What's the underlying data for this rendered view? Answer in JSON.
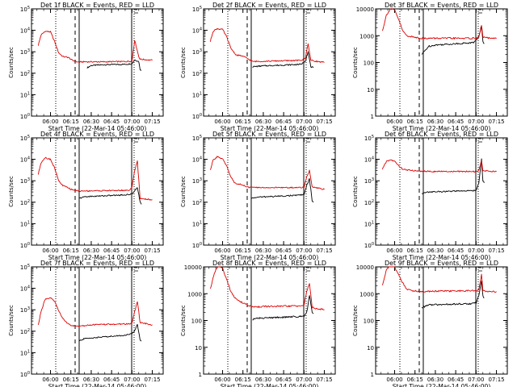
{
  "xlabel": "Start Time (22-Mar-14 05:46:00)",
  "ylabel": "Counts/sec",
  "colors": {
    "events": "#000000",
    "lld": "#dd0000",
    "axes": "#000000"
  },
  "chart_data": [
    {
      "type": "line",
      "title": "Det 1f BLACK = Events, RED = LLD",
      "yscale": "log",
      "ylim": [
        1,
        100000
      ],
      "ytick_labels": [
        "10^0",
        "10^1",
        "10^2",
        "10^3",
        "10^4",
        "10^5"
      ],
      "ytick_values": [
        1,
        10,
        100,
        1000,
        10000,
        100000
      ],
      "xtick_labels": [
        "06:00",
        "06:15",
        "06:30",
        "06:45",
        "07:00",
        "07:15"
      ],
      "series": [
        {
          "role": "events",
          "x": [
            "06:27",
            "06:30",
            "06:40",
            "06:55",
            "07:00",
            "07:02",
            "07:05",
            "07:06",
            "07:07"
          ],
          "y": [
            180,
            230,
            250,
            260,
            280,
            420,
            350,
            150,
            140
          ]
        },
        {
          "role": "lld",
          "x": [
            "05:51",
            "05:53",
            "05:56",
            "06:00",
            "06:03",
            "06:06",
            "06:09",
            "06:13",
            "06:16",
            "06:20",
            "06:25",
            "06:40",
            "06:55",
            "07:00",
            "07:02",
            "07:05",
            "07:06",
            "07:15"
          ],
          "y": [
            2000,
            6000,
            9000,
            8500,
            3000,
            900,
            600,
            550,
            400,
            330,
            340,
            340,
            350,
            370,
            3500,
            600,
            450,
            400
          ]
        }
      ]
    },
    {
      "type": "line",
      "title": "Det 2f BLACK = Events, RED = LLD",
      "yscale": "log",
      "ylim": [
        1,
        100000
      ],
      "ytick_labels": [
        "10^0",
        "10^1",
        "10^2",
        "10^3",
        "10^4",
        "10^5"
      ],
      "ytick_values": [
        1,
        10,
        100,
        1000,
        10000,
        100000
      ],
      "xtick_labels": [
        "06:00",
        "06:15",
        "06:30",
        "06:45",
        "07:00",
        "07:15"
      ],
      "series": [
        {
          "role": "events",
          "x": [
            "06:22",
            "06:30",
            "06:45",
            "06:58",
            "07:01",
            "07:03",
            "07:05",
            "07:07"
          ],
          "y": [
            200,
            220,
            240,
            260,
            380,
            1000,
            200,
            180
          ]
        },
        {
          "role": "lld",
          "x": [
            "05:51",
            "05:53",
            "05:56",
            "06:00",
            "06:03",
            "06:06",
            "06:10",
            "06:14",
            "06:18",
            "06:22",
            "06:30",
            "06:45",
            "06:58",
            "07:01",
            "07:03",
            "07:05",
            "07:10",
            "07:15"
          ],
          "y": [
            3000,
            9000,
            12000,
            11000,
            5000,
            1500,
            700,
            650,
            500,
            350,
            360,
            380,
            400,
            500,
            2500,
            400,
            350,
            320
          ]
        }
      ]
    },
    {
      "type": "line",
      "title": "Det 3f BLACK = Events, RED = LLD",
      "yscale": "log",
      "ylim": [
        1,
        10000
      ],
      "ytick_labels": [
        "1",
        "10",
        "100",
        "1000",
        "10000"
      ],
      "ytick_values": [
        1,
        10,
        100,
        1000,
        10000
      ],
      "xtick_labels": [
        "06:00",
        "06:15",
        "06:30",
        "06:45",
        "07:00",
        "07:15"
      ],
      "series": [
        {
          "role": "events",
          "x": [
            "06:20",
            "06:25",
            "06:30",
            "06:45",
            "06:58",
            "07:02",
            "07:04",
            "07:05",
            "07:06"
          ],
          "y": [
            200,
            400,
            450,
            500,
            550,
            900,
            2200,
            600,
            500
          ]
        },
        {
          "role": "lld",
          "x": [
            "05:51",
            "05:54",
            "05:57",
            "06:00",
            "06:03",
            "06:06",
            "06:09",
            "06:13",
            "06:17",
            "06:20",
            "06:30",
            "06:45",
            "07:00",
            "07:02",
            "07:04",
            "07:05",
            "07:10",
            "07:15"
          ],
          "y": [
            1500,
            6000,
            10000,
            9000,
            4000,
            1500,
            1000,
            900,
            850,
            800,
            800,
            800,
            800,
            900,
            2500,
            900,
            800,
            780
          ]
        }
      ]
    },
    {
      "type": "line",
      "title": "Det 4f BLACK = Events, RED = LLD",
      "yscale": "log",
      "ylim": [
        1,
        100000
      ],
      "ytick_labels": [
        "10^0",
        "10^1",
        "10^2",
        "10^3",
        "10^4",
        "10^5"
      ],
      "ytick_values": [
        1,
        10,
        100,
        1000,
        10000,
        100000
      ],
      "xtick_labels": [
        "06:00",
        "06:15",
        "06:30",
        "06:45",
        "07:00",
        "07:15"
      ],
      "series": [
        {
          "role": "events",
          "x": [
            "06:21",
            "06:25",
            "06:40",
            "06:55",
            "07:00",
            "07:02",
            "07:04",
            "07:06",
            "07:07"
          ],
          "y": [
            150,
            180,
            200,
            220,
            240,
            350,
            500,
            100,
            80
          ]
        },
        {
          "role": "lld",
          "x": [
            "05:51",
            "05:53",
            "05:56",
            "06:00",
            "06:03",
            "06:06",
            "06:09",
            "06:12",
            "06:15",
            "06:21",
            "06:30",
            "06:45",
            "06:58",
            "07:00",
            "07:02",
            "07:04",
            "07:06",
            "07:15"
          ],
          "y": [
            2000,
            7000,
            12000,
            10000,
            4000,
            1000,
            600,
            500,
            400,
            330,
            340,
            350,
            360,
            500,
            3000,
            8000,
            150,
            130
          ]
        }
      ]
    },
    {
      "type": "line",
      "title": "Det 5f BLACK = Events, RED = LLD",
      "yscale": "log",
      "ylim": [
        1,
        100000
      ],
      "ytick_labels": [
        "10^0",
        "10^1",
        "10^2",
        "10^3",
        "10^4",
        "10^5"
      ],
      "ytick_values": [
        1,
        10,
        100,
        1000,
        10000,
        100000
      ],
      "xtick_labels": [
        "06:00",
        "06:15",
        "06:30",
        "06:45",
        "07:00",
        "07:15"
      ],
      "series": [
        {
          "role": "events",
          "x": [
            "06:21",
            "06:25",
            "06:40",
            "06:55",
            "07:00",
            "07:02",
            "07:04",
            "07:06",
            "07:07"
          ],
          "y": [
            150,
            170,
            190,
            210,
            230,
            600,
            1200,
            120,
            100
          ]
        },
        {
          "role": "lld",
          "x": [
            "05:51",
            "05:53",
            "05:56",
            "06:00",
            "06:03",
            "06:06",
            "06:09",
            "06:12",
            "06:15",
            "06:18",
            "06:25",
            "06:40",
            "06:55",
            "07:00",
            "07:02",
            "07:04",
            "07:06",
            "07:15"
          ],
          "y": [
            3000,
            9000,
            13000,
            11000,
            5000,
            1500,
            800,
            700,
            650,
            500,
            480,
            480,
            480,
            500,
            1500,
            3000,
            500,
            400
          ]
        }
      ]
    },
    {
      "type": "line",
      "title": "Det 6f BLACK = Events, RED = LLD",
      "yscale": "log",
      "ylim": [
        1,
        100000
      ],
      "ytick_labels": [
        "10^0",
        "10^1",
        "10^2",
        "10^3",
        "10^4",
        "10^5"
      ],
      "ytick_values": [
        1,
        10,
        100,
        1000,
        10000,
        100000
      ],
      "xtick_labels": [
        "06:00",
        "06:15",
        "06:30",
        "06:45",
        "07:00",
        "07:15"
      ],
      "series": [
        {
          "role": "events",
          "x": [
            "06:20",
            "06:25",
            "06:40",
            "06:55",
            "07:00",
            "07:02",
            "07:04",
            "07:05",
            "07:06"
          ],
          "y": [
            250,
            300,
            320,
            340,
            360,
            800,
            10000,
            1000,
            800
          ]
        },
        {
          "role": "lld",
          "x": [
            "05:51",
            "05:54",
            "05:57",
            "06:00",
            "06:03",
            "06:06",
            "06:09",
            "06:13",
            "06:17",
            "06:20",
            "06:30",
            "06:45",
            "07:00",
            "07:02",
            "07:04",
            "07:05",
            "07:10",
            "07:15"
          ],
          "y": [
            3500,
            8000,
            9500,
            8000,
            5000,
            3500,
            3200,
            3000,
            2900,
            2800,
            2700,
            2700,
            2700,
            2900,
            9000,
            3000,
            2800,
            2700
          ]
        }
      ]
    },
    {
      "type": "line",
      "title": "Det 7f BLACK = Events, RED = LLD",
      "yscale": "log",
      "ylim": [
        1,
        100000
      ],
      "ytick_labels": [
        "10^0",
        "10^1",
        "10^2",
        "10^3",
        "10^4",
        "10^5"
      ],
      "ytick_values": [
        1,
        10,
        100,
        1000,
        10000,
        100000
      ],
      "xtick_labels": [
        "06:00",
        "06:15",
        "06:30",
        "06:45",
        "07:00",
        "07:15"
      ],
      "series": [
        {
          "role": "events",
          "x": [
            "06:21",
            "06:25",
            "06:40",
            "06:55",
            "07:00",
            "07:02",
            "07:04",
            "07:06",
            "07:07"
          ],
          "y": [
            35,
            45,
            55,
            65,
            75,
            110,
            200,
            40,
            35
          ]
        },
        {
          "role": "lld",
          "x": [
            "05:51",
            "05:53",
            "05:56",
            "06:00",
            "06:03",
            "06:06",
            "06:09",
            "06:12",
            "06:15",
            "06:21",
            "06:30",
            "06:45",
            "06:58",
            "07:00",
            "07:02",
            "07:04",
            "07:06",
            "07:15"
          ],
          "y": [
            200,
            800,
            3000,
            3500,
            2500,
            900,
            400,
            250,
            180,
            170,
            200,
            210,
            220,
            240,
            800,
            2500,
            250,
            200
          ]
        }
      ]
    },
    {
      "type": "line",
      "title": "Det 8f BLACK = Events, RED = LLD",
      "yscale": "log",
      "ylim": [
        1,
        10000
      ],
      "ytick_labels": [
        "1",
        "10",
        "100",
        "1000",
        "10000"
      ],
      "ytick_values": [
        1,
        10,
        100,
        1000,
        10000
      ],
      "xtick_labels": [
        "06:00",
        "06:15",
        "06:30",
        "06:45",
        "07:00",
        "07:15"
      ],
      "series": [
        {
          "role": "events",
          "x": [
            "06:22",
            "06:25",
            "06:40",
            "06:55",
            "07:00",
            "07:02",
            "07:04",
            "07:06",
            "07:07"
          ],
          "y": [
            110,
            120,
            130,
            140,
            150,
            200,
            900,
            200,
            180
          ]
        },
        {
          "role": "lld",
          "x": [
            "05:51",
            "05:54",
            "05:57",
            "06:00",
            "06:03",
            "06:06",
            "06:09",
            "06:12",
            "06:15",
            "06:22",
            "06:30",
            "06:45",
            "06:58",
            "07:00",
            "07:02",
            "07:04",
            "07:06",
            "07:15"
          ],
          "y": [
            1500,
            6000,
            11000,
            9000,
            3500,
            1200,
            700,
            550,
            450,
            320,
            330,
            340,
            350,
            380,
            1200,
            2500,
            300,
            250
          ]
        }
      ]
    },
    {
      "type": "line",
      "title": "Det 9f BLACK = Events, RED = LLD",
      "yscale": "log",
      "ylim": [
        1,
        10000
      ],
      "ytick_labels": [
        "1",
        "10",
        "100",
        "1000",
        "10000"
      ],
      "ytick_values": [
        1,
        10,
        100,
        1000,
        10000
      ],
      "xtick_labels": [
        "06:00",
        "06:15",
        "06:30",
        "06:45",
        "07:00",
        "07:15"
      ],
      "series": [
        {
          "role": "events",
          "x": [
            "06:20",
            "06:25",
            "06:40",
            "06:55",
            "07:00",
            "07:02",
            "07:04",
            "07:05",
            "07:06"
          ],
          "y": [
            300,
            380,
            400,
            420,
            450,
            900,
            3000,
            800,
            700
          ]
        },
        {
          "role": "lld",
          "x": [
            "05:51",
            "05:54",
            "05:57",
            "06:00",
            "06:03",
            "06:06",
            "06:09",
            "06:13",
            "06:17",
            "06:20",
            "06:30",
            "06:45",
            "07:00",
            "07:02",
            "07:04",
            "07:05",
            "07:10",
            "07:15"
          ],
          "y": [
            2000,
            8000,
            12000,
            10000,
            5000,
            2500,
            1500,
            1300,
            1250,
            1200,
            1250,
            1250,
            1300,
            1400,
            5000,
            1300,
            1200,
            1200
          ]
        }
      ]
    }
  ]
}
